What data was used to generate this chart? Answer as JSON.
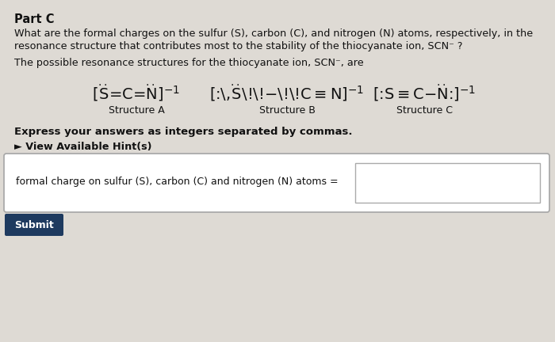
{
  "background_color": "#dedad4",
  "part_label": "Part C",
  "q_line1": "What are the formal charges on the sulfur (S), carbon (C), and nitrogen (N) atoms, respectively, in the",
  "q_line2": "resonance structure that contributes most to the stability of the thiocyanate ion, SCN⁻ ?",
  "poss_line": "The possible resonance structures for the thiocyanate ion, SCN⁻, are",
  "strA_label": "Structure A",
  "strB_label": "Structure B",
  "strC_label": "Structure C",
  "bold_text": "Express your answers as integers separated by commas.",
  "hint_text": "► View Available Hint(s)",
  "answer_label": "formal charge on sulfur (S), carbon (C) and nitrogen (N) atoms =",
  "submit_text": "Submit",
  "submit_color": "#1e3a5f",
  "text_color": "#111111",
  "box_color": "#aaaaaa",
  "white": "#ffffff"
}
